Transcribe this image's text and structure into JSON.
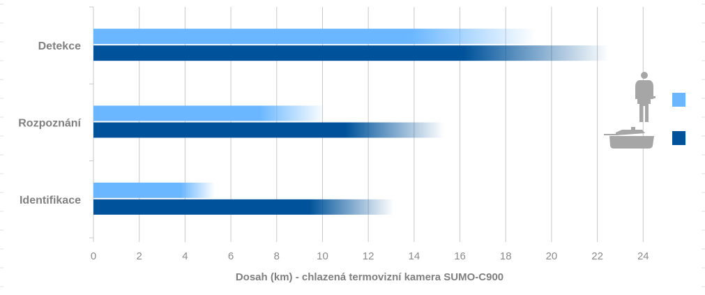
{
  "chart_data": {
    "type": "bar",
    "orientation": "horizontal",
    "categories": [
      "Detekce",
      "Rozpoznání",
      "Identifikace"
    ],
    "series": [
      {
        "values": [
          19.3,
          10.1,
          5.3
        ],
        "color": "#6bb7ff",
        "legend_icon": "soldier-silhouette-icon"
      },
      {
        "values": [
          22.5,
          15.3,
          13.1
        ],
        "color": "#00539b",
        "legend_icon": "tank-silhouette-icon"
      }
    ],
    "xlabel": "Dosah (km) - chlazená termovizní kamera SUMO-C900",
    "xticks": [
      "0",
      "2",
      "4",
      "6",
      "8",
      "10",
      "12",
      "14",
      "16",
      "18",
      "20",
      "22",
      "24"
    ],
    "xlim": [
      0,
      26
    ],
    "grid": "vertical",
    "legend_position": "right"
  }
}
